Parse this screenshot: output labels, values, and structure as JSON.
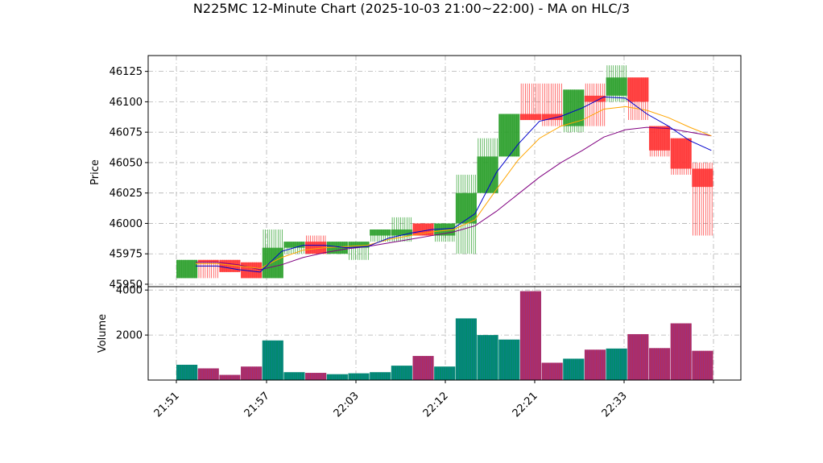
{
  "chart_data": {
    "type": "candlestick",
    "title": "N225MC 12-Minute Chart (2025-10-03 21:00~22:00) - MA on HLC/3",
    "price_ylabel": "Price",
    "volume_ylabel": "Volume",
    "price_ylim": [
      45948,
      46138
    ],
    "volume_ylim": [
      0,
      4150
    ],
    "price_ticks": [
      "45950",
      "45975",
      "46000",
      "46025",
      "46050",
      "46075",
      "46100",
      "46125"
    ],
    "volume_ticks": [
      "2000",
      "4000"
    ],
    "x_ticks": [
      "21:51",
      "21:57",
      "22:03",
      "22:12",
      "22:21",
      "22:33"
    ],
    "grid": true,
    "colors": {
      "up": "#2ca02c",
      "down": "#ff3333",
      "ma_fast": "#0000cc",
      "ma_mid": "#ffa500",
      "ma_slow": "#800080",
      "vol_up": "#008b6b",
      "vol_down": "#a0307a"
    },
    "candles": [
      {
        "open": 45955,
        "high": 45970,
        "low": 45955,
        "close": 45970,
        "volume": 680
      },
      {
        "open": 45970,
        "high": 45970,
        "low": 45955,
        "close": 45968,
        "volume": 520
      },
      {
        "open": 45970,
        "high": 45970,
        "low": 45960,
        "close": 45960,
        "volume": 230
      },
      {
        "open": 45968,
        "high": 45968,
        "low": 45955,
        "close": 45955,
        "volume": 600
      },
      {
        "open": 45955,
        "high": 45995,
        "low": 45955,
        "close": 45980,
        "volume": 1760
      },
      {
        "open": 45980,
        "high": 45985,
        "low": 45975,
        "close": 45985,
        "volume": 350
      },
      {
        "open": 45985,
        "high": 45990,
        "low": 45975,
        "close": 45975,
        "volume": 320
      },
      {
        "open": 45975,
        "high": 45985,
        "low": 45975,
        "close": 45985,
        "volume": 260
      },
      {
        "open": 45980,
        "high": 45985,
        "low": 45970,
        "close": 45985,
        "volume": 300
      },
      {
        "open": 45990,
        "high": 45995,
        "low": 45985,
        "close": 45995,
        "volume": 350
      },
      {
        "open": 45990,
        "high": 46005,
        "low": 45985,
        "close": 45995,
        "volume": 640
      },
      {
        "open": 46000,
        "high": 46000,
        "low": 45990,
        "close": 45990,
        "volume": 1070
      },
      {
        "open": 45990,
        "high": 46000,
        "low": 45985,
        "close": 46000,
        "volume": 600
      },
      {
        "open": 46000,
        "high": 46040,
        "low": 45975,
        "close": 46025,
        "volume": 2740
      },
      {
        "open": 46025,
        "high": 46070,
        "low": 46025,
        "close": 46055,
        "volume": 2000
      },
      {
        "open": 46055,
        "high": 46090,
        "low": 46055,
        "close": 46090,
        "volume": 1800
      },
      {
        "open": 46090,
        "high": 46115,
        "low": 46085,
        "close": 46085,
        "volume": 3950
      },
      {
        "open": 46090,
        "high": 46115,
        "low": 46080,
        "close": 46085,
        "volume": 770
      },
      {
        "open": 46080,
        "high": 46110,
        "low": 46075,
        "close": 46110,
        "volume": 950
      },
      {
        "open": 46105,
        "high": 46115,
        "low": 46080,
        "close": 46100,
        "volume": 1350
      },
      {
        "open": 46105,
        "high": 46130,
        "low": 46100,
        "close": 46120,
        "volume": 1400
      },
      {
        "open": 46120,
        "high": 46120,
        "low": 46085,
        "close": 46100,
        "volume": 2040
      },
      {
        "open": 46080,
        "high": 46080,
        "low": 46055,
        "close": 46060,
        "volume": 1420
      },
      {
        "open": 46070,
        "high": 46070,
        "low": 46040,
        "close": 46045,
        "volume": 2520
      },
      {
        "open": 46045,
        "high": 46050,
        "low": 45990,
        "close": 46030,
        "volume": 1300
      }
    ],
    "ma_fast": [
      45965,
      45965,
      45962,
      45960,
      45977,
      45982,
      45982,
      45980,
      45981,
      45988,
      45992,
      45995,
      45996,
      46008,
      46042,
      46065,
      46084,
      46088,
      46095,
      46104,
      46103,
      46090,
      46080,
      46068,
      46060
    ],
    "ma_mid": [
      45967,
      45967,
      45965,
      45963,
      45972,
      45978,
      45980,
      45981,
      45982,
      45987,
      45990,
      45993,
      45995,
      46003,
      46028,
      46052,
      46070,
      46080,
      46085,
      46094,
      46096,
      46093,
      46087,
      46079,
      46072
    ],
    "ma_slow": [
      45968,
      45968,
      45966,
      45962,
      45966,
      45972,
      45976,
      45979,
      45981,
      45984,
      45987,
      45990,
      45993,
      45998,
      46010,
      46024,
      46038,
      46050,
      46060,
      46071,
      46077,
      46079,
      46078,
      46075,
      46072
    ]
  }
}
